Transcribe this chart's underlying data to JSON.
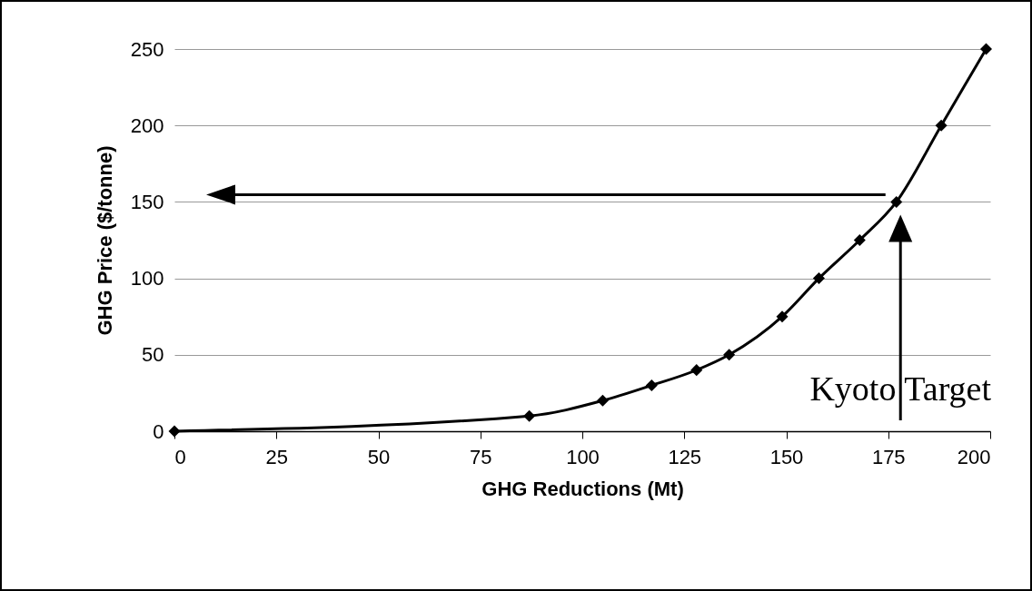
{
  "chart_data": {
    "type": "line",
    "xlabel": "GHG Reductions (Mt)",
    "ylabel": "GHG Price ($/tonne)",
    "x": [
      0,
      87,
      105,
      117,
      128,
      136,
      149,
      158,
      168,
      177,
      188,
      199
    ],
    "series": [
      {
        "color": "#000000",
        "values": [
          0,
          10,
          20,
          30,
          40,
          50,
          75,
          100,
          125,
          150,
          200,
          250
        ]
      }
    ],
    "xlim": [
      0,
      200
    ],
    "xticks": [
      0,
      25,
      50,
      75,
      100,
      125,
      150,
      175,
      200
    ],
    "ylim": [
      0,
      250
    ],
    "yticks": [
      0,
      50,
      100,
      150,
      200,
      250
    ],
    "grid": "y",
    "marker": "diamond",
    "line_style": "solid",
    "ref_lines": [
      {
        "axis": "x",
        "value": 178,
        "label": "Kyoto Target"
      }
    ]
  }
}
